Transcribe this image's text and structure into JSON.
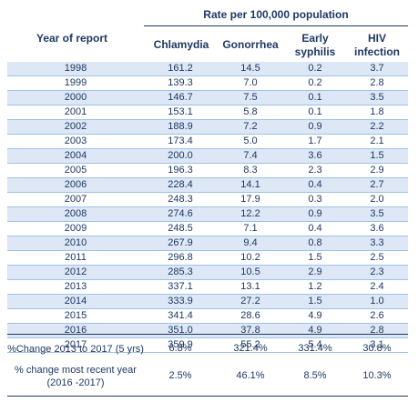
{
  "table": {
    "super_header": "Rate per 100,000 population",
    "year_header": "Year of report",
    "col_headers": [
      "Chlamydia",
      "Gonorrhea",
      "Early syphilis",
      "HIV infection"
    ],
    "rows": [
      [
        "1998",
        "161.2",
        "14.5",
        "0.2",
        "3.7"
      ],
      [
        "1999",
        "139.3",
        "7.0",
        "0.2",
        "2.8"
      ],
      [
        "2000",
        "146.7",
        "7.5",
        "0.1",
        "3.5"
      ],
      [
        "2001",
        "153.1",
        "5.8",
        "0.1",
        "1.8"
      ],
      [
        "2002",
        "188.9",
        "7.2",
        "0.9",
        "2.2"
      ],
      [
        "2003",
        "173.4",
        "5.0",
        "1.7",
        "2.1"
      ],
      [
        "2004",
        "200.0",
        "7.4",
        "3.6",
        "1.5"
      ],
      [
        "2005",
        "196.3",
        "8.3",
        "2.3",
        "2.9"
      ],
      [
        "2006",
        "228.4",
        "14.1",
        "0.4",
        "2.7"
      ],
      [
        "2007",
        "248.3",
        "17.9",
        "0.3",
        "2.0"
      ],
      [
        "2008",
        "274.6",
        "12.2",
        "0.9",
        "3.5"
      ],
      [
        "2009",
        "248.5",
        "7.1",
        "0.4",
        "3.6"
      ],
      [
        "2010",
        "267.9",
        "9.4",
        "0.8",
        "3.3"
      ],
      [
        "2011",
        "296.8",
        "10.2",
        "1.5",
        "2.5"
      ],
      [
        "2012",
        "285.3",
        "10.5",
        "2.9",
        "2.3"
      ],
      [
        "2013",
        "337.1",
        "13.1",
        "1.2",
        "2.4"
      ],
      [
        "2014",
        "333.9",
        "27.2",
        "1.5",
        "1.0"
      ],
      [
        "2015",
        "341.4",
        "28.6",
        "4.9",
        "2.6"
      ],
      [
        "2016",
        "351.0",
        "37.8",
        "4.9",
        "2.8"
      ],
      [
        "2017",
        "359.9",
        "55.2",
        "5.4",
        "3.1"
      ]
    ],
    "summary": [
      {
        "label": "%Change 2013 to 2017 (5 yrs)",
        "values": [
          "6.8%",
          "321.4%",
          "331.4%",
          "30.8%"
        ]
      },
      {
        "label": "% change most recent year (2016 -2017)",
        "values": [
          "2.5%",
          "46.1%",
          "8.5%",
          "10.3%"
        ]
      }
    ]
  }
}
